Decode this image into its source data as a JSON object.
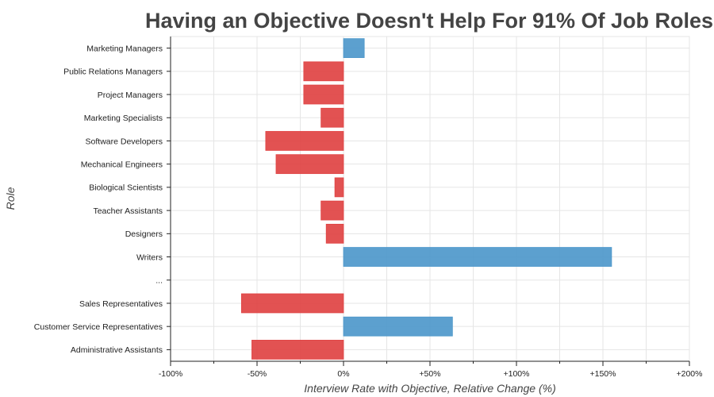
{
  "chart_data": {
    "type": "bar",
    "orientation": "horizontal",
    "title": "Having an Objective Doesn't Help For 91% Of Job Roles",
    "xlabel": "Interview Rate with Objective, Relative Change (%)",
    "ylabel": "Role",
    "xlim": [
      -100,
      200
    ],
    "xticks": [
      -100,
      -75,
      -50,
      -25,
      0,
      25,
      50,
      75,
      100,
      125,
      150,
      175,
      200
    ],
    "xtick_labels": [
      "-100%",
      "",
      "-50%",
      "",
      "0%",
      "",
      "+50%",
      "",
      "+100%",
      "",
      "+150%",
      "",
      "+200%"
    ],
    "grid": true,
    "categories": [
      "Marketing Managers",
      "Public Relations Managers",
      "Project Managers",
      "Marketing Specialists",
      "Software Developers",
      "Mechanical Engineers",
      "Biological Scientists",
      "Teacher Assistants",
      "Designers",
      "Writers",
      "...",
      "Sales Representatives",
      "Customer Service Representatives",
      "Administrative Assistants"
    ],
    "values": [
      12,
      -23,
      -23,
      -13,
      -45,
      -39,
      -5,
      -13,
      -10,
      155,
      null,
      -59,
      63,
      -53
    ],
    "colors": {
      "positive": "#4e98cb",
      "negative": "#e04343"
    }
  }
}
